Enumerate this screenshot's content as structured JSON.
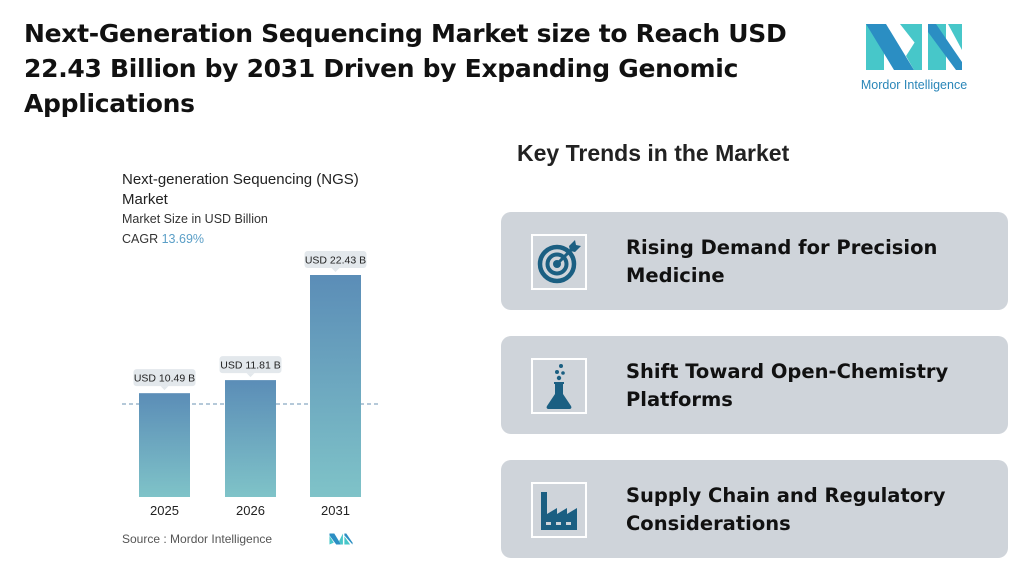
{
  "header": {
    "title": "Next-Generation Sequencing Market size to Reach USD 22.43 Billion by 2031 Driven by Expanding Genomic Applications",
    "logo_text": "Mordor Intelligence"
  },
  "chart_data": {
    "type": "bar",
    "title": "Next-generation Sequencing (NGS) Market",
    "subtitle": "Market Size in USD Billion",
    "cagr_label": "CAGR",
    "cagr_value": "13.69%",
    "categories": [
      "2025",
      "2026",
      "2031"
    ],
    "values": [
      10.49,
      11.81,
      22.43
    ],
    "data_labels": [
      "USD 10.49 B",
      "USD 11.81 B",
      "USD 22.43 B"
    ],
    "source": "Source :  Mordor Intelligence",
    "grid": false,
    "colors": {
      "bar_top": "#5b8db7",
      "bar_bottom": "#7fc3c8",
      "cagr": "#5b9fc7"
    }
  },
  "trends": {
    "heading": "Key Trends in the Market",
    "items": [
      {
        "label": "Rising Demand for Precision Medicine",
        "icon": "target-icon"
      },
      {
        "label": "Shift Toward Open-Chemistry Platforms",
        "icon": "flask-icon"
      },
      {
        "label": "Supply Chain and Regulatory Considerations",
        "icon": "factory-icon"
      }
    ],
    "colors": {
      "card": "#cfd4da",
      "icon": "#1b5f82"
    }
  }
}
